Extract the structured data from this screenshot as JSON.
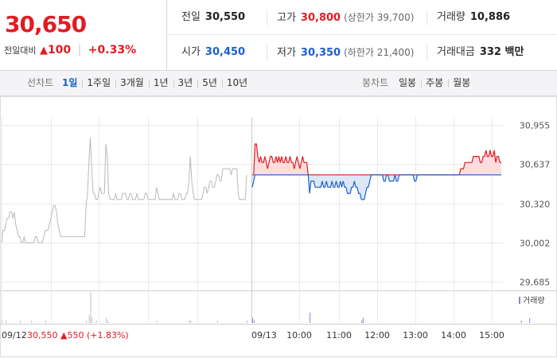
{
  "header": {
    "price": "30,650",
    "change_label": "전일대비",
    "change_amount": "100",
    "change_percent": "+0.33%",
    "stats": [
      [
        {
          "label": "전일",
          "value": "30,550",
          "sub": "",
          "color": "#222222"
        },
        {
          "label": "고가",
          "value": "30,800",
          "sub": "(상한가 39,700)",
          "color": "#e21b23"
        },
        {
          "label": "거래량",
          "value": "10,886",
          "sub": "",
          "color": "#222222"
        }
      ],
      [
        {
          "label": "시가",
          "value": "30,450",
          "sub": "",
          "color": "#1a5fd0"
        },
        {
          "label": "저가",
          "value": "30,350",
          "sub": "(하한가 21,400)",
          "color": "#1a5fd0"
        },
        {
          "label": "거래대금",
          "value": "332 백만",
          "sub": "",
          "color": "#222222"
        }
      ]
    ]
  },
  "tabs": {
    "line_label": "선차트",
    "line_items": [
      "1일",
      "1주일",
      "3개월",
      "1년",
      "3년",
      "5년",
      "10년"
    ],
    "line_active": 0,
    "candle_label": "봉차트",
    "candle_items": [
      "일봉",
      "주봉",
      "월봉"
    ]
  },
  "chart_data": {
    "type": "line",
    "ylim": [
      29685,
      30955
    ],
    "y_ticks": [
      "30,955",
      "30,637",
      "30,320",
      "30,002",
      "29,685"
    ],
    "y_tick_values": [
      30955,
      30637,
      30320,
      30002,
      29685
    ],
    "baseline": 30550,
    "x_labels": [
      "09/12",
      "09/13",
      "10:00",
      "11:00",
      "12:00",
      "13:00",
      "14:00",
      "15:00"
    ],
    "prev_day_info": {
      "date": "09/12",
      "close": "30,550",
      "change": "550",
      "pct": "(+1.83%)"
    },
    "volume_legend": "거래량",
    "prev_day_series": [
      30000,
      30100,
      30100,
      30150,
      30200,
      30200,
      30250,
      30250,
      30200,
      30250,
      30150,
      30100,
      30050,
      30050,
      30000,
      30000,
      30050,
      30000,
      30000,
      30000,
      30000,
      30000,
      30000,
      30000,
      30050,
      30050,
      30000,
      30000,
      30000,
      30000,
      30050,
      30100,
      30100,
      30100,
      30150,
      30200,
      30250,
      30300,
      30300,
      30250,
      30150,
      30100,
      30050,
      30050,
      30050,
      30050,
      30050,
      30050,
      30050,
      30050,
      30050,
      30050,
      30050,
      30050,
      30050,
      30050,
      30050,
      30050,
      30050,
      30050,
      30300,
      30400,
      30650,
      30850,
      30600,
      30400,
      30400,
      30350,
      30350,
      30400,
      30450,
      30400,
      30400,
      30400,
      30800,
      30700,
      30400,
      30350,
      30350,
      30350,
      30350,
      30400,
      30350,
      30350,
      30350,
      30350,
      30400,
      30400,
      30400,
      30350,
      30350,
      30400,
      30400,
      30350,
      30350,
      30350,
      30400,
      30350,
      30350,
      30350,
      30350,
      30350,
      30400,
      30400,
      30350,
      30350,
      30350,
      30350,
      30350,
      30350,
      30450,
      30400,
      30350,
      30350,
      30350,
      30350,
      30350,
      30350,
      30350,
      30350,
      30350,
      30350,
      30400,
      30350,
      30350,
      30350,
      30400,
      30400,
      30350,
      30350,
      30350,
      30400,
      30400,
      30500,
      30700,
      30500,
      30400,
      30350,
      30350,
      30350,
      30350,
      30350,
      30350,
      30400,
      30450,
      30450,
      30400,
      30450,
      30500,
      30500,
      30450,
      30450,
      30500,
      30550,
      30550,
      30500,
      30500,
      30600,
      30600,
      30600,
      30600,
      30600,
      30600,
      30550,
      30600,
      30600,
      30600,
      30600,
      30400,
      30350,
      30350,
      30350,
      30350,
      30350,
      30550
    ],
    "today_series": [
      30450,
      30500,
      30800,
      30800,
      30700,
      30650,
      30700,
      30650,
      30650,
      30700,
      30650,
      30600,
      30650,
      30700,
      30700,
      30650,
      30650,
      30700,
      30650,
      30700,
      30650,
      30700,
      30650,
      30650,
      30700,
      30650,
      30650,
      30700,
      30650,
      30650,
      30600,
      30650,
      30700,
      30650,
      30600,
      30650,
      30700,
      30650,
      30650,
      30650,
      30550,
      30400,
      30500,
      30500,
      30500,
      30450,
      30450,
      30450,
      30450,
      30450,
      30500,
      30450,
      30450,
      30500,
      30450,
      30450,
      30450,
      30500,
      30450,
      30450,
      30500,
      30450,
      30450,
      30500,
      30450,
      30500,
      30450,
      30450,
      30400,
      30400,
      30400,
      30450,
      30450,
      30500,
      30450,
      30450,
      30400,
      30400,
      30350,
      30350,
      30350,
      30400,
      30450,
      30450,
      30500,
      30550,
      30550,
      30550,
      30550,
      30550,
      30550,
      30550,
      30550,
      30550,
      30500,
      30500,
      30550,
      30550,
      30500,
      30500,
      30500,
      30500,
      30550,
      30500,
      30500,
      30550,
      30550,
      30550,
      30550,
      30550,
      30550,
      30550,
      30550,
      30550,
      30550,
      30550,
      30500,
      30500,
      30550,
      30550,
      30550,
      30550,
      30550,
      30550,
      30550,
      30550,
      30550,
      30550,
      30550,
      30550,
      30550,
      30550,
      30550,
      30550,
      30550,
      30550,
      30550,
      30550,
      30550,
      30550,
      30550,
      30550,
      30550,
      30550,
      30550,
      30550,
      30550,
      30550,
      30550,
      30600,
      30600,
      30600,
      30650,
      30650,
      30650,
      30650,
      30650,
      30650,
      30700,
      30700,
      30700,
      30700,
      30700,
      30650,
      30650,
      30700,
      30700,
      30750,
      30700,
      30700,
      30750,
      30700,
      30700,
      30750,
      30650,
      30700,
      30700,
      30650,
      30650
    ],
    "prev_day_volume": [
      1,
      0,
      0,
      1,
      0,
      0,
      0,
      0,
      0,
      0,
      0,
      0,
      0,
      1,
      0,
      0,
      0,
      0,
      0,
      0,
      0,
      1,
      0,
      0,
      0,
      0,
      0,
      0,
      0,
      0,
      0,
      1,
      0,
      0,
      0,
      0,
      0,
      0,
      0,
      0,
      0,
      0,
      0,
      0,
      0,
      0,
      0,
      0,
      0,
      0,
      0,
      0,
      0,
      0,
      0,
      0,
      0,
      0,
      0,
      0,
      1,
      0,
      3,
      12,
      2,
      0,
      0,
      1,
      0,
      0,
      0,
      0,
      0,
      0,
      2,
      1,
      0,
      0,
      0,
      0,
      0,
      0,
      0,
      0,
      0,
      0,
      0,
      0,
      0,
      0,
      0,
      0,
      0,
      0,
      0,
      0,
      0,
      0,
      0,
      0,
      0,
      0,
      0,
      0,
      0,
      0,
      0,
      0,
      0,
      0,
      1,
      0,
      0,
      0,
      0,
      0,
      0,
      0,
      0,
      0,
      0,
      0,
      0,
      0,
      0,
      0,
      0,
      0,
      0,
      0,
      0,
      0,
      0,
      1,
      1,
      0,
      0,
      0,
      0,
      0,
      0,
      0,
      0,
      0,
      0,
      0,
      0,
      0,
      0,
      0,
      0,
      0,
      0,
      1,
      0,
      0,
      0,
      0,
      0,
      0,
      0,
      0,
      0,
      0,
      0,
      0,
      0,
      0,
      0,
      0,
      0,
      0,
      0,
      0,
      1
    ],
    "today_volume": [
      2,
      1,
      0,
      0,
      0,
      0,
      0,
      0,
      0,
      0,
      0,
      0,
      0,
      0,
      0,
      0,
      0,
      0,
      0,
      0,
      0,
      0,
      0,
      0,
      0,
      0,
      0,
      0,
      0,
      0,
      0,
      0,
      0,
      0,
      0,
      0,
      0,
      0,
      0,
      0,
      0,
      4,
      0,
      0,
      0,
      0,
      0,
      0,
      0,
      0,
      0,
      0,
      0,
      0,
      0,
      0,
      0,
      0,
      0,
      0,
      0,
      0,
      0,
      0,
      0,
      0,
      0,
      0,
      0,
      0,
      0,
      0,
      0,
      0,
      0,
      0,
      0,
      0,
      1,
      2,
      0,
      0,
      0,
      0,
      0,
      0,
      0,
      0,
      0,
      0,
      0,
      0,
      0,
      0,
      0,
      0,
      0,
      0,
      0,
      0,
      0,
      0,
      0,
      0,
      0,
      0,
      0,
      0,
      0,
      0,
      0,
      0,
      0,
      0,
      0,
      0,
      0,
      0,
      0,
      0,
      0,
      0,
      0,
      0,
      0,
      0,
      0,
      0,
      0,
      0,
      0,
      0,
      0,
      0,
      0,
      0,
      0,
      0,
      0,
      0,
      0,
      0,
      0,
      0,
      0,
      0,
      0,
      0,
      0,
      0,
      0,
      0,
      0,
      0,
      0,
      0,
      0,
      0,
      0,
      0,
      0,
      0,
      0,
      0,
      0,
      0,
      0,
      0,
      0,
      0,
      0,
      0,
      0,
      0,
      0,
      0,
      0,
      0,
      0,
      0,
      0,
      0,
      0,
      0,
      0,
      0,
      0,
      0,
      0,
      0,
      0,
      0,
      1,
      0,
      0,
      0,
      0,
      0,
      2
    ],
    "colors": {
      "prev_line": "#b9b9b9",
      "up": "#e21b23",
      "down": "#1a5fd0",
      "up_fill": "#fbdde0",
      "down_fill": "#dce8f8",
      "grid": "#e9e9e9",
      "volume": "#8c84d6",
      "prev_volume": "#bfbfbf"
    }
  }
}
